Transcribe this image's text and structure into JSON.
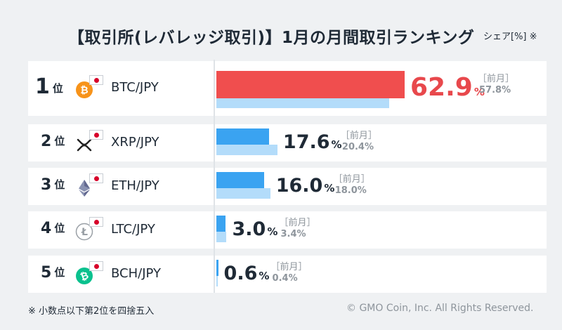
{
  "title": "【取引所(レバレッジ取引)】1月の月間取引ランキング",
  "unit": "シェア[%] ※",
  "footnote": "※ 小数点以下第2位を四捨五入",
  "copyright": "© GMO Coin, Inc. All Rights Reserved.",
  "rank_suffix": "位",
  "prev_label": "［前月］",
  "pct_sign": "%",
  "colors": {
    "current_top": "#f04e4e",
    "current": "#3aa3f1",
    "previous": "#b3dcfa",
    "top_value_text": "#e8484c"
  },
  "chart_data": {
    "type": "bar",
    "orientation": "horizontal",
    "title": "【取引所(レバレッジ取引)】1月の月間取引ランキング",
    "xlabel": "",
    "ylabel": "シェア[%]",
    "xlim": [
      0,
      70
    ],
    "categories": [
      "BTC/JPY",
      "XRP/JPY",
      "ETH/JPY",
      "LTC/JPY",
      "BCH/JPY"
    ],
    "ranks": [
      "1",
      "2",
      "3",
      "4",
      "5"
    ],
    "series": [
      {
        "name": "",
        "values": [
          62.9,
          17.6,
          16.0,
          3.0,
          0.6
        ],
        "labels": [
          "62.9",
          "17.6",
          "16.0",
          "3.0",
          "0.6"
        ]
      },
      {
        "name": "前月",
        "values": [
          57.8,
          20.4,
          18.0,
          3.4,
          0.4
        ],
        "labels": [
          "57.8%",
          "20.4%",
          "18.0%",
          "3.4%",
          "0.4%"
        ]
      }
    ],
    "icons": [
      "bitcoin-icon",
      "ripple-icon",
      "ethereum-icon",
      "litecoin-icon",
      "bitcoin-cash-icon"
    ]
  }
}
